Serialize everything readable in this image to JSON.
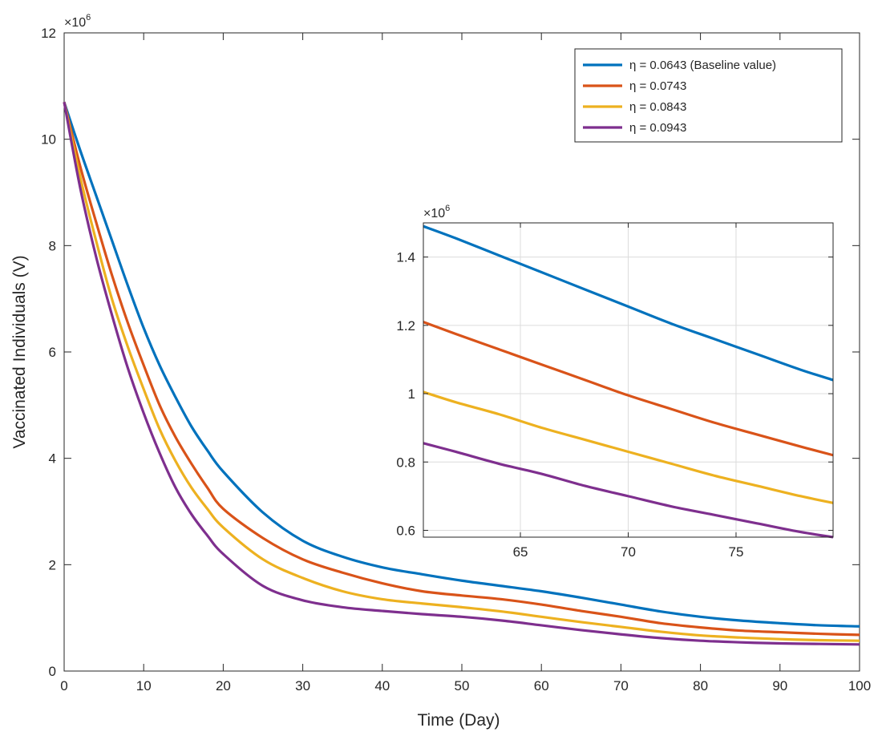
{
  "chart_data": [
    {
      "type": "line",
      "name": "main",
      "xlabel": "Time (Day)",
      "ylabel": "Vaccinated Individuals (V)",
      "xlim": [
        0,
        100
      ],
      "ylim": [
        0,
        12
      ],
      "xticks": [
        0,
        10,
        20,
        30,
        40,
        50,
        60,
        70,
        80,
        90,
        100
      ],
      "yticks": [
        0,
        2,
        4,
        6,
        8,
        10,
        12
      ],
      "y_multiplier": "×10",
      "y_multiplier_exp": "6",
      "grid": false,
      "legend_position": "top-right",
      "x": [
        0,
        2,
        4,
        6,
        8,
        10,
        12,
        14,
        16,
        18,
        20,
        25,
        30,
        35,
        40,
        45,
        50,
        55,
        60,
        65,
        70,
        75,
        80,
        85,
        90,
        95,
        100
      ],
      "series": [
        {
          "name": "η = 0.0643 (Baseline value)",
          "color": "#0072BD",
          "values": [
            10.7,
            9.8,
            8.95,
            8.1,
            7.25,
            6.45,
            5.75,
            5.15,
            4.6,
            4.15,
            3.75,
            2.98,
            2.45,
            2.15,
            1.95,
            1.82,
            1.7,
            1.6,
            1.5,
            1.38,
            1.25,
            1.12,
            1.02,
            0.95,
            0.9,
            0.86,
            0.84
          ]
        },
        {
          "name": "η = 0.0743",
          "color": "#D95319",
          "values": [
            10.7,
            9.5,
            8.45,
            7.45,
            6.55,
            5.75,
            5.0,
            4.4,
            3.9,
            3.45,
            3.05,
            2.5,
            2.1,
            1.85,
            1.65,
            1.5,
            1.42,
            1.35,
            1.25,
            1.13,
            1.02,
            0.9,
            0.82,
            0.76,
            0.73,
            0.7,
            0.68
          ]
        },
        {
          "name": "η = 0.0843",
          "color": "#EDB120",
          "values": [
            10.7,
            9.3,
            8.1,
            7.0,
            6.1,
            5.3,
            4.55,
            3.95,
            3.45,
            3.05,
            2.7,
            2.1,
            1.75,
            1.5,
            1.35,
            1.27,
            1.2,
            1.12,
            1.02,
            0.92,
            0.83,
            0.74,
            0.67,
            0.63,
            0.6,
            0.58,
            0.57
          ]
        },
        {
          "name": "η = 0.0943",
          "color": "#7E2F8E",
          "values": [
            10.7,
            9.1,
            7.8,
            6.7,
            5.7,
            4.85,
            4.1,
            3.45,
            2.95,
            2.55,
            2.2,
            1.6,
            1.33,
            1.2,
            1.13,
            1.07,
            1.02,
            0.95,
            0.86,
            0.77,
            0.69,
            0.62,
            0.57,
            0.54,
            0.52,
            0.51,
            0.5
          ]
        }
      ]
    },
    {
      "type": "line",
      "name": "inset",
      "xlim": [
        60.5,
        79.5
      ],
      "ylim": [
        0.58,
        1.5
      ],
      "xticks": [
        65,
        70,
        75
      ],
      "yticks": [
        0.6,
        0.8,
        1,
        1.2,
        1.4
      ],
      "ytick_labels": [
        "0.6",
        "0.8",
        "1",
        "1.2",
        "1.4"
      ],
      "y_multiplier": "×10",
      "y_multiplier_exp": "6",
      "grid": true,
      "x": [
        60.5,
        62,
        64,
        66,
        68,
        70,
        72,
        74,
        76,
        78,
        79.5
      ],
      "series": [
        {
          "name": "η = 0.0643 (Baseline value)",
          "color": "#0072BD",
          "values": [
            1.49,
            1.455,
            1.405,
            1.355,
            1.305,
            1.255,
            1.205,
            1.16,
            1.115,
            1.07,
            1.04
          ]
        },
        {
          "name": "η = 0.0743",
          "color": "#D95319",
          "values": [
            1.21,
            1.175,
            1.13,
            1.085,
            1.04,
            0.995,
            0.955,
            0.915,
            0.88,
            0.845,
            0.82
          ]
        },
        {
          "name": "η = 0.0843",
          "color": "#EDB120",
          "values": [
            1.005,
            0.975,
            0.94,
            0.9,
            0.865,
            0.83,
            0.795,
            0.76,
            0.73,
            0.7,
            0.68
          ]
        },
        {
          "name": "η = 0.0943",
          "color": "#7E2F8E",
          "values": [
            0.855,
            0.83,
            0.795,
            0.765,
            0.73,
            0.7,
            0.67,
            0.645,
            0.62,
            0.595,
            0.58
          ]
        }
      ]
    }
  ]
}
